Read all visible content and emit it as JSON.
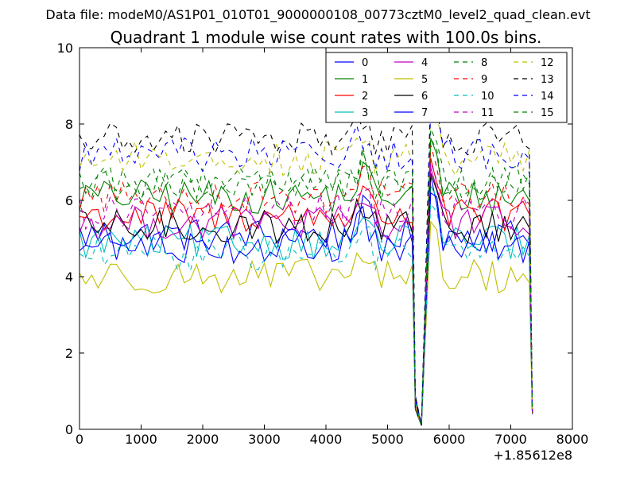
{
  "chart_data": {
    "type": "line",
    "suptitle": "Data file: modeM0/AS1P01_010T01_9000000108_00773cztM0_level2_quad_clean.evt",
    "title": "Quadrant 1 module wise count rates with 100.0s bins.",
    "xlabel": "",
    "ylabel": "",
    "x_offset_label": "+1.85612e8",
    "xlim": [
      0,
      8000
    ],
    "ylim": [
      0,
      10
    ],
    "xticks": [
      0,
      1000,
      2000,
      3000,
      4000,
      5000,
      6000,
      7000,
      8000
    ],
    "yticks": [
      0,
      2,
      4,
      6,
      8,
      10
    ],
    "xtick_labels": [
      "0",
      "1000",
      "2000",
      "3000",
      "4000",
      "5000",
      "6000",
      "7000",
      "8000"
    ],
    "ytick_labels": [
      "0",
      "2",
      "4",
      "6",
      "8",
      "10"
    ],
    "legend_position": "top-right",
    "legend_columns": 4,
    "bin_width_s": 100,
    "gap_x": [
      5450,
      5550
    ],
    "peak_x": [
      5700,
      5800
    ],
    "end_x": [
      7300,
      7350
    ],
    "series": [
      {
        "name": "0",
        "color": "#0000ff",
        "style": "solid",
        "base": 5.1
      },
      {
        "name": "1",
        "color": "#008000",
        "style": "solid",
        "base": 6.1
      },
      {
        "name": "2",
        "color": "#ff0000",
        "style": "solid",
        "base": 5.6
      },
      {
        "name": "3",
        "color": "#00bfbf",
        "style": "solid",
        "base": 4.9
      },
      {
        "name": "4",
        "color": "#bf00bf",
        "style": "solid",
        "base": 5.4
      },
      {
        "name": "5",
        "color": "#bfbf00",
        "style": "solid",
        "base": 4.0
      },
      {
        "name": "6",
        "color": "#000000",
        "style": "solid",
        "base": 5.3
      },
      {
        "name": "7",
        "color": "#0000ff",
        "style": "solid",
        "base": 4.8
      },
      {
        "name": "8",
        "color": "#008000",
        "style": "dashed",
        "base": 6.5
      },
      {
        "name": "9",
        "color": "#ff0000",
        "style": "dashed",
        "base": 6.1
      },
      {
        "name": "10",
        "color": "#00bfbf",
        "style": "dashed",
        "base": 4.6
      },
      {
        "name": "11",
        "color": "#bf00bf",
        "style": "dashed",
        "base": 5.7
      },
      {
        "name": "12",
        "color": "#bfbf00",
        "style": "dashed",
        "base": 7.1
      },
      {
        "name": "13",
        "color": "#000000",
        "style": "dashed",
        "base": 7.6
      },
      {
        "name": "14",
        "color": "#0000ff",
        "style": "dashed",
        "base": 7.2
      },
      {
        "name": "15",
        "color": "#008000",
        "style": "dashed",
        "base": 6.4
      }
    ]
  }
}
